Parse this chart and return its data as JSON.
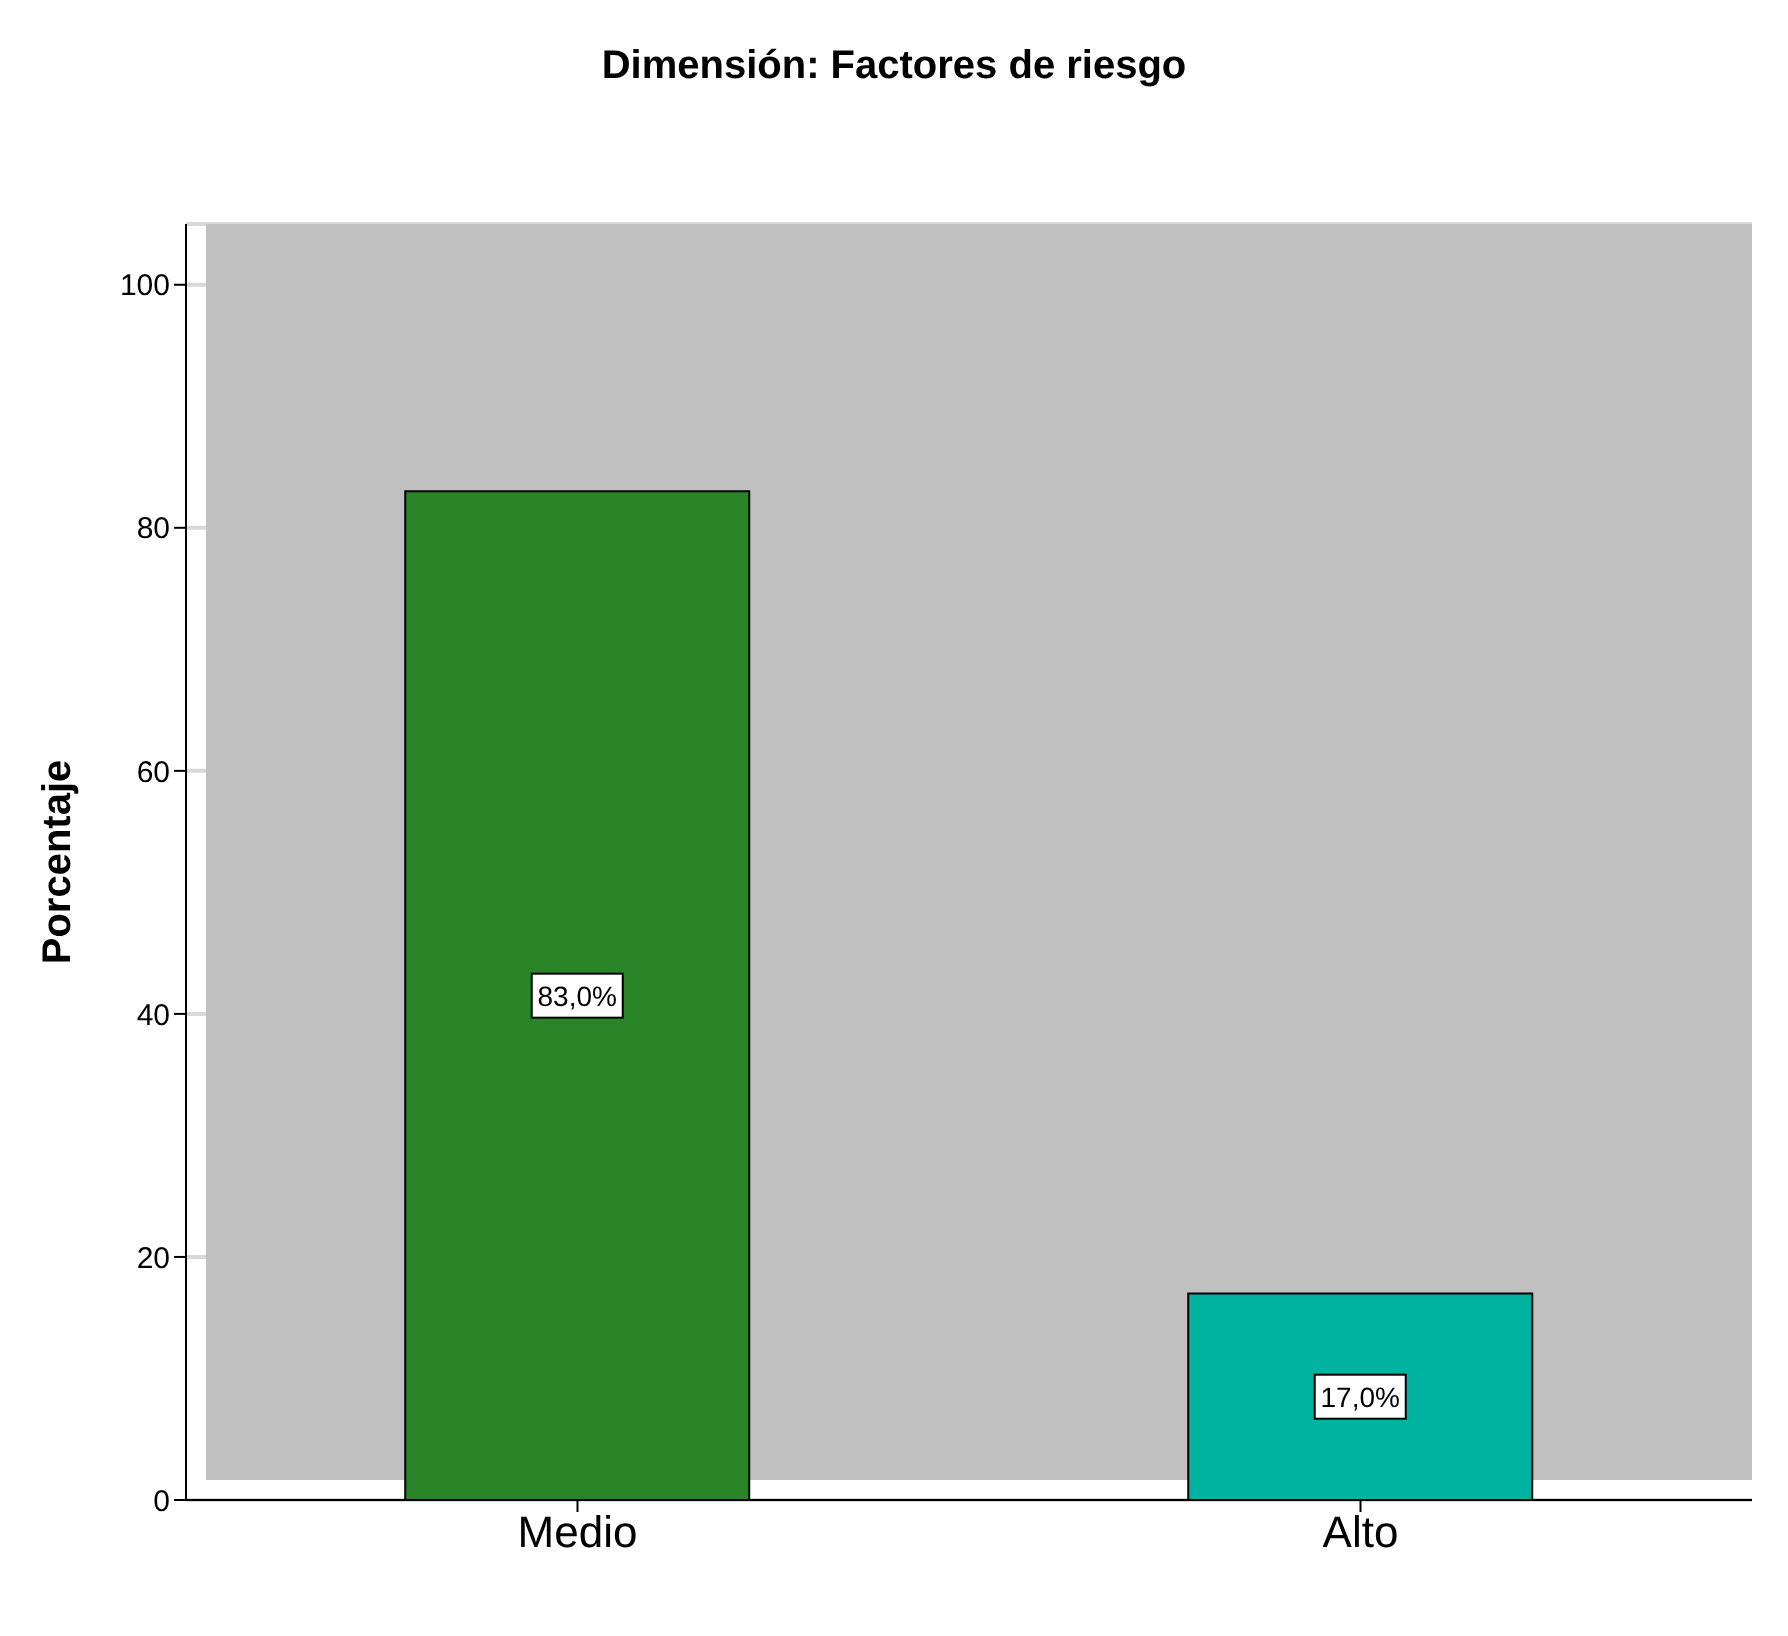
{
  "chart_data": {
    "type": "bar",
    "title": "Dimensión: Factores de riesgo",
    "ylabel": "Porcentaje",
    "categories": [
      "Medio",
      "Alto"
    ],
    "values": [
      83.0,
      17.0
    ],
    "colors": [
      "#2a8529",
      "#00b3a0"
    ],
    "value_labels": [
      "83,0%",
      "17,0%"
    ],
    "ylim": [
      0,
      105
    ],
    "yticks": [
      0,
      20,
      40,
      60,
      80,
      100
    ],
    "grid": "y"
  }
}
